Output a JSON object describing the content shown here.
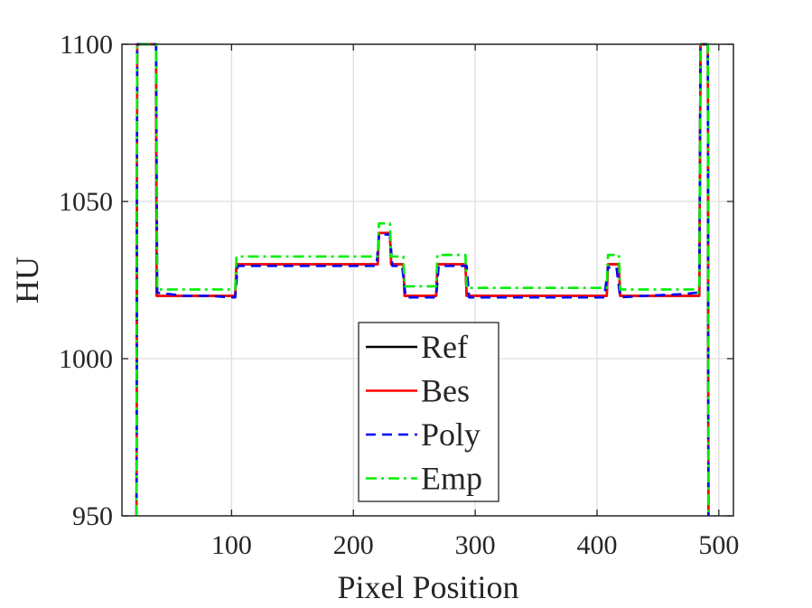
{
  "chart_data": {
    "type": "line",
    "title": "",
    "xlabel": "Pixel Position",
    "ylabel": "HU",
    "xlim": [
      10,
      512
    ],
    "ylim": [
      950,
      1100
    ],
    "xticks": [
      100,
      200,
      300,
      400,
      500
    ],
    "yticks": [
      950,
      1000,
      1050,
      1100
    ],
    "grid": true,
    "legend_position": "lower-center",
    "series": [
      {
        "name": "Ref",
        "color": "#000000",
        "dash": "solid",
        "x": [
          22,
          22.5,
          38,
          38.5,
          103,
          104,
          220,
          221,
          230,
          231,
          241,
          242,
          268,
          269,
          292,
          293,
          408,
          409,
          418,
          419,
          484,
          485,
          491,
          491.5
        ],
        "y": [
          950,
          1100,
          1100,
          1020,
          1020,
          1030,
          1030,
          1040,
          1040,
          1030,
          1030,
          1020,
          1020,
          1030,
          1030,
          1020,
          1020,
          1030,
          1030,
          1020,
          1020,
          1100,
          1100,
          950
        ]
      },
      {
        "name": "Bes",
        "color": "#ff0000",
        "dash": "solid",
        "x": [
          22,
          22.5,
          38,
          38.5,
          103,
          104,
          220,
          221,
          230,
          231,
          241,
          242,
          268,
          269,
          292,
          293,
          408,
          409,
          418,
          419,
          484,
          485,
          491,
          491.5
        ],
        "y": [
          950,
          1100,
          1100,
          1020,
          1020,
          1030,
          1030,
          1040,
          1040,
          1030,
          1030,
          1020,
          1020,
          1030,
          1030,
          1020,
          1020,
          1030,
          1030,
          1020,
          1020,
          1100,
          1100,
          950
        ]
      },
      {
        "name": "Poly",
        "color": "#0000ff",
        "dash": "dashed",
        "x": [
          22,
          22.5,
          38,
          39,
          50,
          60,
          80,
          100,
          103,
          105,
          150,
          200,
          219,
          221,
          230,
          232,
          240,
          243,
          265,
          268,
          270,
          290,
          293,
          295,
          350,
          400,
          406,
          409,
          416,
          419,
          440,
          470,
          482,
          484,
          485,
          491,
          491.5
        ],
        "y": [
          950,
          1100,
          1100,
          1021,
          1020.5,
          1020,
          1020,
          1019.5,
          1019.5,
          1029.5,
          1029.5,
          1029.5,
          1029.5,
          1039.5,
          1039.5,
          1029.5,
          1029.5,
          1019.5,
          1019.5,
          1019.5,
          1029.5,
          1029.5,
          1029.5,
          1019.5,
          1019.5,
          1019.5,
          1019.5,
          1029,
          1029,
          1019.5,
          1020,
          1020.5,
          1021,
          1023,
          1100,
          1100,
          950
        ]
      },
      {
        "name": "Emp",
        "color": "#00ee00",
        "dash": "dashdot",
        "x": [
          22,
          22.5,
          38,
          39,
          103,
          104,
          220,
          221,
          230,
          231,
          241,
          242,
          268,
          269,
          292,
          293,
          408,
          409,
          418,
          419,
          482,
          483,
          484,
          485,
          491,
          491.5
        ],
        "y": [
          950,
          1100,
          1100,
          1022,
          1022,
          1032.5,
          1032.5,
          1043,
          1043,
          1032.5,
          1032.5,
          1023,
          1023,
          1033,
          1033,
          1022.5,
          1022.5,
          1033,
          1033,
          1022,
          1022,
          1021,
          1024,
          1100,
          1100,
          950
        ]
      }
    ]
  }
}
